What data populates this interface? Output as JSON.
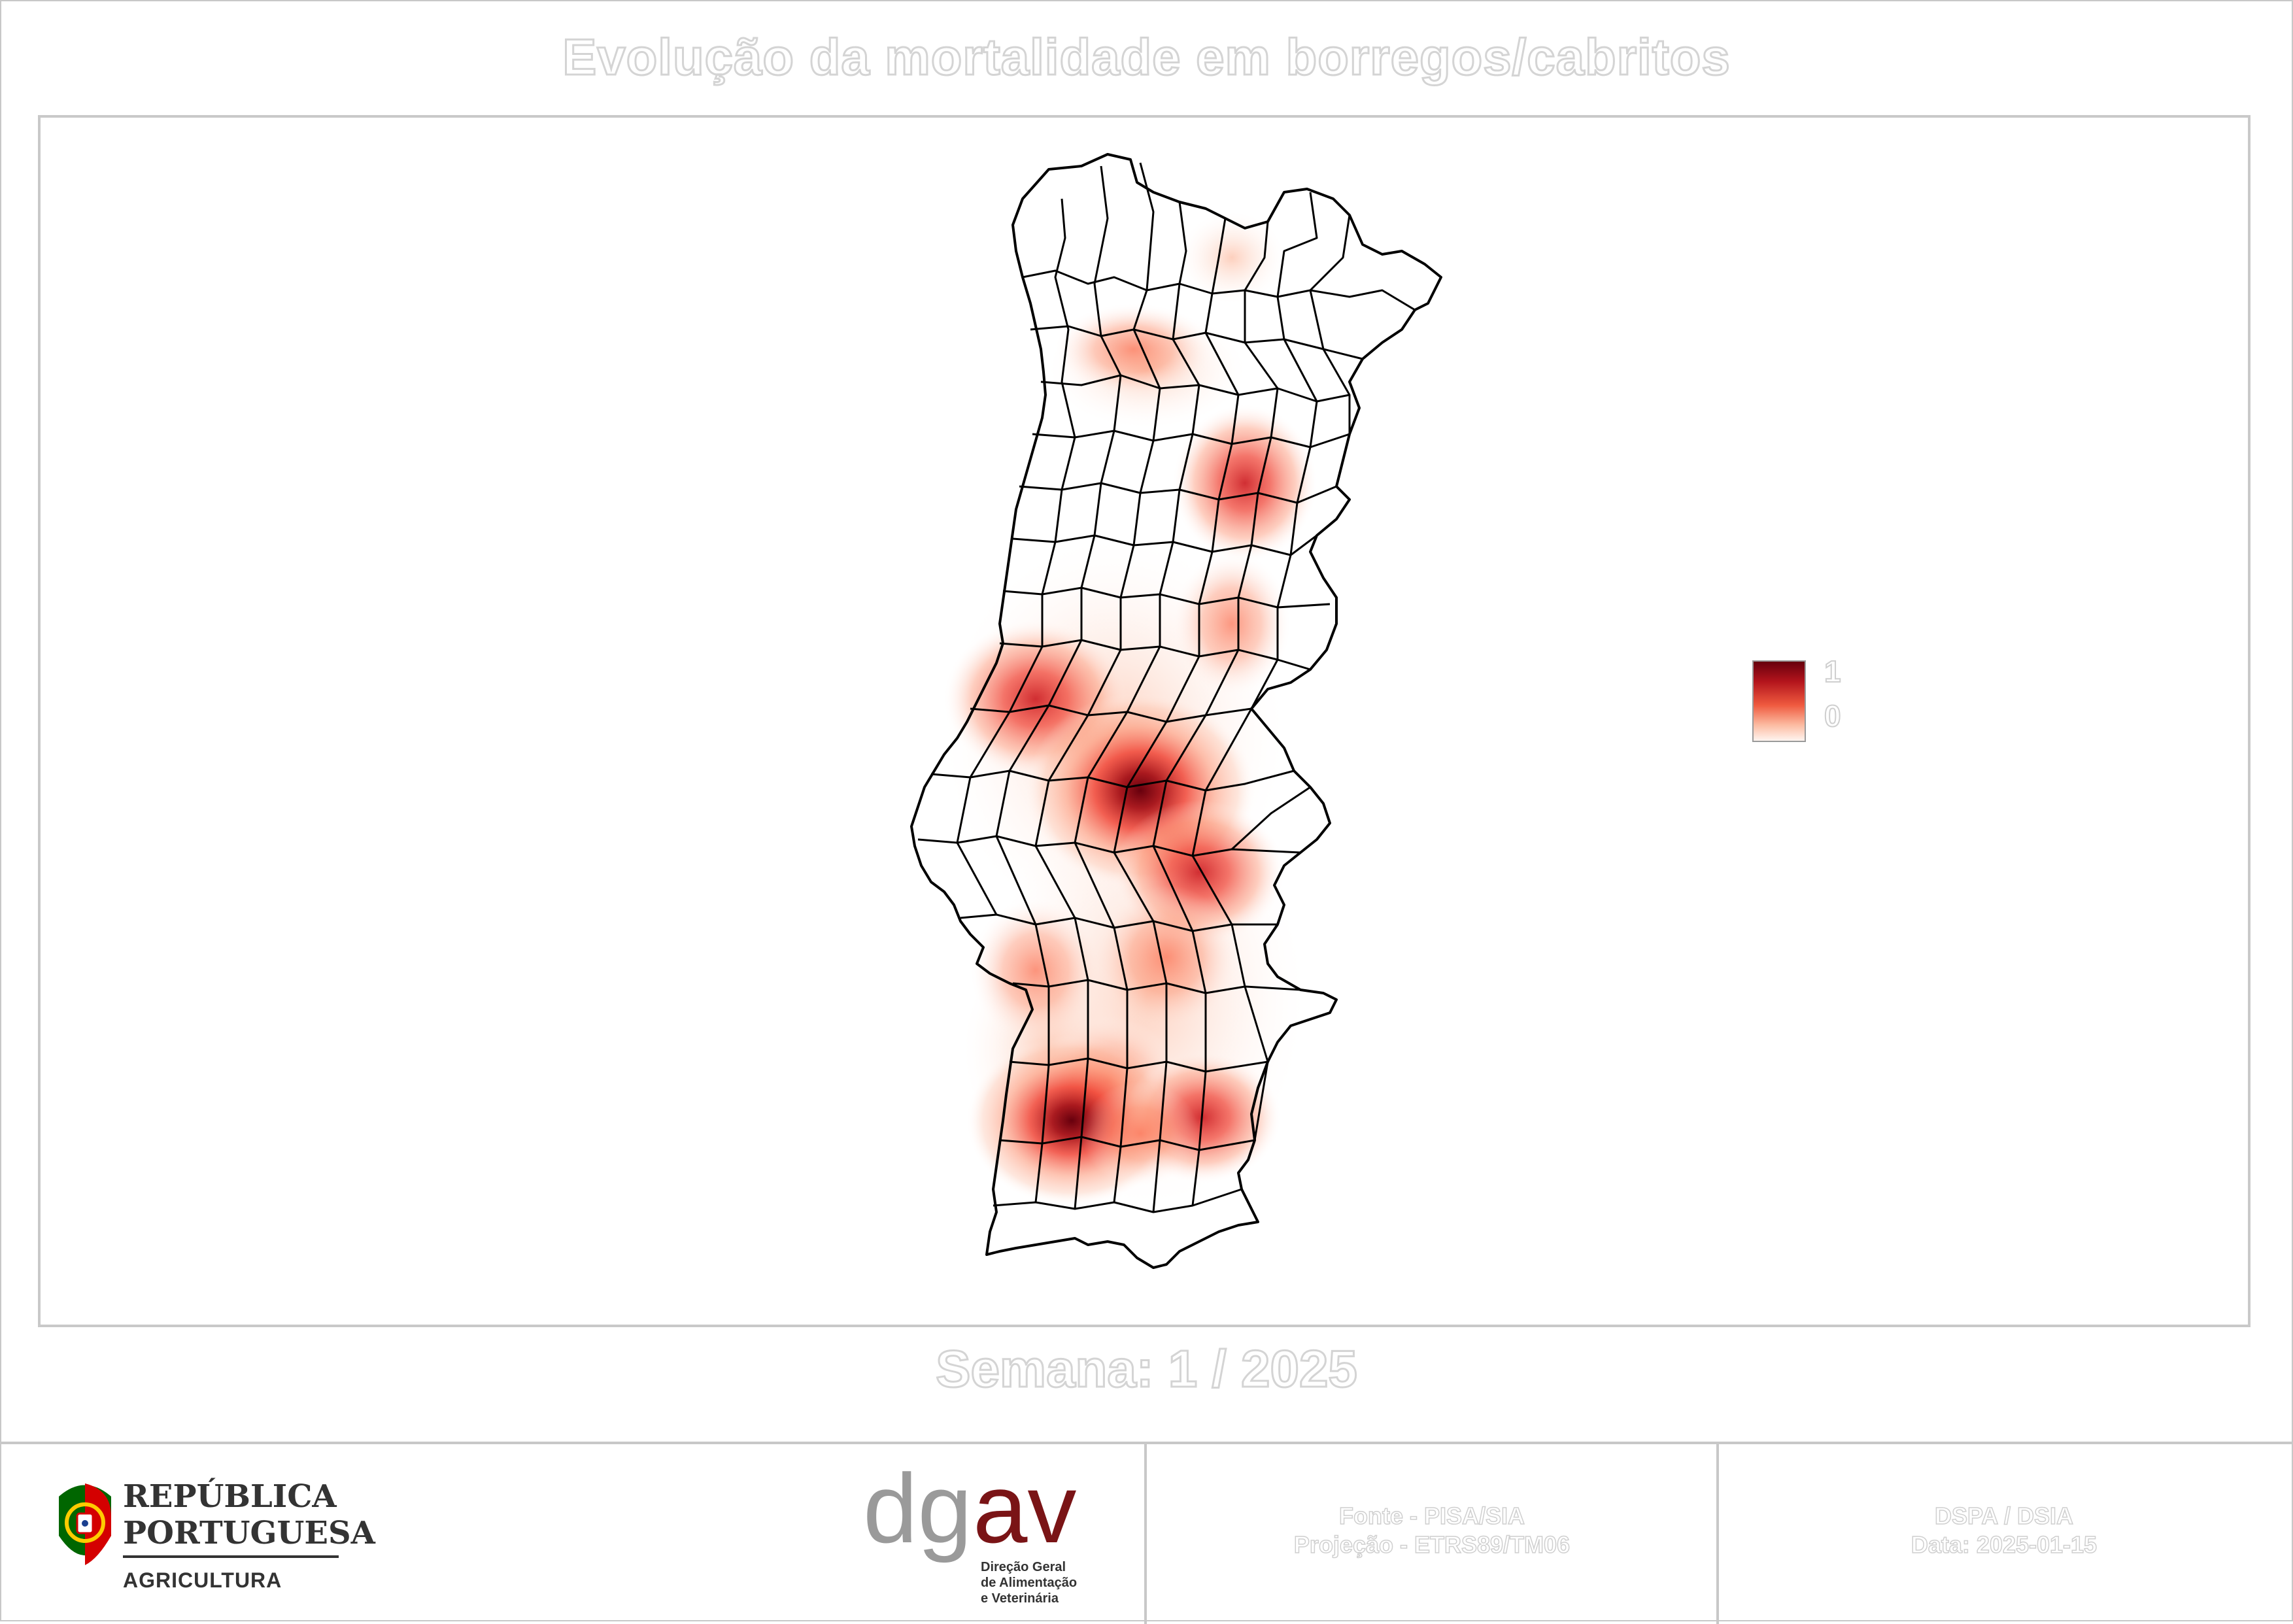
{
  "title": "Evolução da mortalidade em borregos/cabritos",
  "subtitle": "Semana: 1 / 2025",
  "legend": {
    "max_label": "1",
    "min_label": "0",
    "color_high": "#67000d",
    "color_low": "#fff5f0"
  },
  "map": {
    "region": "Portugal continental",
    "boundary_color": "#000000",
    "hotspots": [
      {
        "place": "Castelo Branco / Vila Velha de Ródão",
        "intensity": 1.0
      },
      {
        "place": "Ourique / Castro Verde",
        "intensity": 0.85
      },
      {
        "place": "Vila Velha de Ródão sul / Nisa",
        "intensity": 0.6
      },
      {
        "place": "Mértola / Almodôvar",
        "intensity": 0.45
      },
      {
        "place": "Leiria / Pombal",
        "intensity": 0.45
      },
      {
        "place": "Guarda / Trancoso",
        "intensity": 0.45
      },
      {
        "place": "Beja",
        "intensity": 0.35
      },
      {
        "place": "Évora",
        "intensity": 0.3
      },
      {
        "place": "Sabugal",
        "intensity": 0.3
      },
      {
        "place": "Braga / Guimarães",
        "intensity": 0.25
      }
    ]
  },
  "footer": {
    "republica": "REPÚBLICA\nPORTUGUESA",
    "republica_line1": "REPÚBLICA",
    "republica_line2": "PORTUGUESA",
    "ministry": "AGRICULTURA",
    "dgav_full_line1": "Direção Geral",
    "dgav_full_line2": "de Alimentação",
    "dgav_full_line3": "e Veterinária",
    "source_line1": "Fonte - PISA/SIA",
    "source_line2": "Projeção - ETRS89/TM06",
    "credit_line1": "DSPA / DSIA",
    "credit_line2": "Data: 2025-01-15"
  }
}
